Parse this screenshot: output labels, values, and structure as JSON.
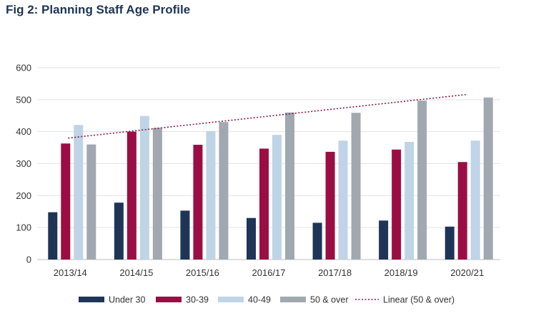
{
  "title": "Fig 2: Planning Staff Age Profile",
  "colors": {
    "under_30": "#1e3557",
    "30_39": "#9b0e44",
    "40_49": "#bfd4e6",
    "50_over": "#a1a8b0",
    "trendline": "#8b1a3a",
    "title": "#1d3557"
  },
  "chart_data": {
    "type": "bar",
    "title": "Fig 2: Planning Staff Age Profile",
    "xlabel": "",
    "ylabel": "",
    "ylim": [
      0,
      600
    ],
    "yticks": [
      0,
      100,
      200,
      300,
      400,
      500,
      600
    ],
    "grid": true,
    "legend_position": "bottom",
    "categories": [
      "2013/14",
      "2014/15",
      "2015/16",
      "2016/17",
      "2017/18",
      "2018/19",
      "2020/21"
    ],
    "series": [
      {
        "name": "Under 30",
        "values": [
          148,
          178,
          153,
          130,
          115,
          122,
          103
        ]
      },
      {
        "name": "30-39",
        "values": [
          363,
          400,
          359,
          347,
          337,
          344,
          305
        ]
      },
      {
        "name": "40-49",
        "values": [
          421,
          449,
          402,
          390,
          372,
          368,
          372
        ]
      },
      {
        "name": "50 & over",
        "values": [
          360,
          412,
          430,
          460,
          459,
          497,
          507
        ]
      }
    ],
    "trendline": {
      "name": "Linear (50 & over)",
      "start": 380,
      "end": 516
    }
  }
}
